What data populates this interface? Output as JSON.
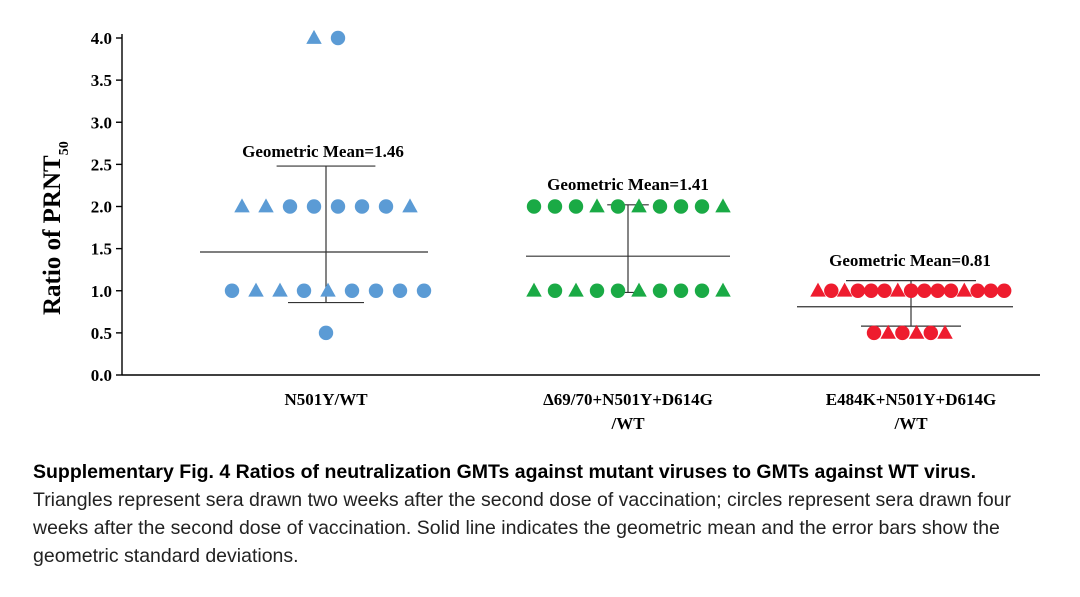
{
  "chart_data": {
    "type": "scatter",
    "ylabel": "Ratio of PRNT",
    "ylabel_subscript": "50",
    "ylim": [
      0.0,
      4.0
    ],
    "yticks": [
      "0.0",
      "0.5",
      "1.0",
      "1.5",
      "2.0",
      "2.5",
      "3.0",
      "3.5",
      "4.0"
    ],
    "categories": [
      "N501Y/WT",
      "Δ69/70+N501Y+D614G /WT",
      "E484K+N501Y+D614G /WT"
    ],
    "groups": [
      {
        "category": "N501Y/WT",
        "color": "#5b9bd5",
        "geometric_mean": 1.46,
        "gm_label": "Geometric Mean=1.46",
        "error_bar": [
          0.86,
          2.48
        ],
        "points": [
          {
            "y": 4.0,
            "shape": "triangle"
          },
          {
            "y": 4.0,
            "shape": "circle"
          },
          {
            "y": 2.0,
            "shape": "triangle"
          },
          {
            "y": 2.0,
            "shape": "triangle"
          },
          {
            "y": 2.0,
            "shape": "circle"
          },
          {
            "y": 2.0,
            "shape": "circle"
          },
          {
            "y": 2.0,
            "shape": "circle"
          },
          {
            "y": 2.0,
            "shape": "circle"
          },
          {
            "y": 2.0,
            "shape": "circle"
          },
          {
            "y": 2.0,
            "shape": "triangle"
          },
          {
            "y": 1.0,
            "shape": "circle"
          },
          {
            "y": 1.0,
            "shape": "triangle"
          },
          {
            "y": 1.0,
            "shape": "triangle"
          },
          {
            "y": 1.0,
            "shape": "circle"
          },
          {
            "y": 1.0,
            "shape": "triangle"
          },
          {
            "y": 1.0,
            "shape": "circle"
          },
          {
            "y": 1.0,
            "shape": "circle"
          },
          {
            "y": 1.0,
            "shape": "circle"
          },
          {
            "y": 1.0,
            "shape": "circle"
          },
          {
            "y": 0.5,
            "shape": "circle"
          }
        ]
      },
      {
        "category": "Δ69/70+N501Y+D614G /WT",
        "color": "#1aaa45",
        "geometric_mean": 1.41,
        "gm_label": "Geometric Mean=1.41",
        "error_bar": [
          0.98,
          2.02
        ],
        "points": [
          {
            "y": 2.0,
            "shape": "circle"
          },
          {
            "y": 2.0,
            "shape": "circle"
          },
          {
            "y": 2.0,
            "shape": "circle"
          },
          {
            "y": 2.0,
            "shape": "triangle"
          },
          {
            "y": 2.0,
            "shape": "circle"
          },
          {
            "y": 2.0,
            "shape": "triangle"
          },
          {
            "y": 2.0,
            "shape": "circle"
          },
          {
            "y": 2.0,
            "shape": "circle"
          },
          {
            "y": 2.0,
            "shape": "circle"
          },
          {
            "y": 2.0,
            "shape": "triangle"
          },
          {
            "y": 1.0,
            "shape": "triangle"
          },
          {
            "y": 1.0,
            "shape": "circle"
          },
          {
            "y": 1.0,
            "shape": "triangle"
          },
          {
            "y": 1.0,
            "shape": "circle"
          },
          {
            "y": 1.0,
            "shape": "circle"
          },
          {
            "y": 1.0,
            "shape": "triangle"
          },
          {
            "y": 1.0,
            "shape": "circle"
          },
          {
            "y": 1.0,
            "shape": "circle"
          },
          {
            "y": 1.0,
            "shape": "circle"
          },
          {
            "y": 1.0,
            "shape": "triangle"
          }
        ]
      },
      {
        "category": "E484K+N501Y+D614G /WT",
        "color": "#ee1c2e",
        "geometric_mean": 0.81,
        "gm_label": "Geometric Mean=0.81",
        "error_bar": [
          0.58,
          1.12
        ],
        "points": [
          {
            "y": 1.0,
            "shape": "triangle"
          },
          {
            "y": 1.0,
            "shape": "circle"
          },
          {
            "y": 1.0,
            "shape": "triangle"
          },
          {
            "y": 1.0,
            "shape": "circle"
          },
          {
            "y": 1.0,
            "shape": "circle"
          },
          {
            "y": 1.0,
            "shape": "circle"
          },
          {
            "y": 1.0,
            "shape": "triangle"
          },
          {
            "y": 1.0,
            "shape": "circle"
          },
          {
            "y": 1.0,
            "shape": "circle"
          },
          {
            "y": 1.0,
            "shape": "circle"
          },
          {
            "y": 1.0,
            "shape": "circle"
          },
          {
            "y": 1.0,
            "shape": "triangle"
          },
          {
            "y": 1.0,
            "shape": "circle"
          },
          {
            "y": 1.0,
            "shape": "circle"
          },
          {
            "y": 1.0,
            "shape": "circle"
          },
          {
            "y": 0.5,
            "shape": "circle"
          },
          {
            "y": 0.5,
            "shape": "triangle"
          },
          {
            "y": 0.5,
            "shape": "circle"
          },
          {
            "y": 0.5,
            "shape": "triangle"
          },
          {
            "y": 0.5,
            "shape": "circle"
          },
          {
            "y": 0.5,
            "shape": "triangle"
          }
        ]
      }
    ]
  },
  "caption": {
    "bold": "Supplementary Fig. 4 Ratios of neutralization GMTs against mutant viruses to GMTs against WT virus.",
    "text": "Triangles represent sera drawn two weeks after the second dose of vaccination; circles represent sera drawn four weeks after the second dose of vaccination. Solid line indicates the geometric mean and the error bars show the geometric standard deviations."
  }
}
